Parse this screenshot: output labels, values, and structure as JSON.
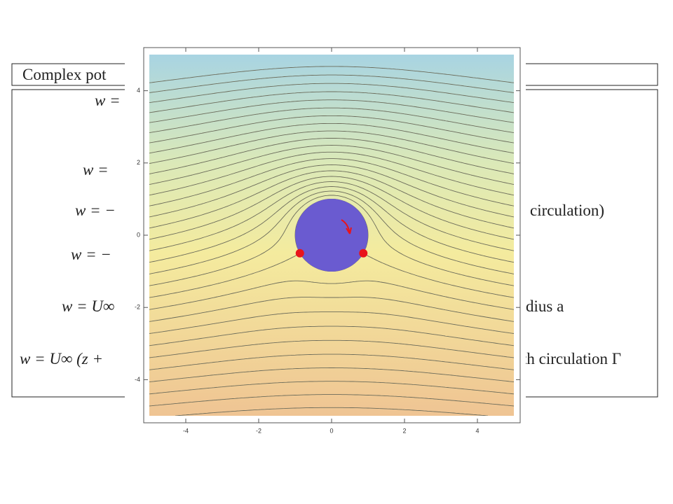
{
  "slide": {
    "title": "Complex pot",
    "lines": [
      "w =",
      "w =",
      "w = −",
      "w = −",
      "w = U∞",
      "w = U∞ (z +"
    ],
    "right": [
      "circulation)",
      "dius a",
      "th circulation Γ"
    ]
  },
  "chart_data": {
    "type": "contour",
    "xlim": [
      -5,
      5
    ],
    "ylim": [
      -5,
      5
    ],
    "xticks": [
      -4,
      -2,
      0,
      2,
      4
    ],
    "yticks": [
      -4,
      -2,
      0,
      2,
      4
    ],
    "levels": [
      -3,
      -2.7,
      -2.4,
      -2.1,
      -1.8,
      -1.5,
      -1.2,
      -0.9,
      -0.6,
      -0.3,
      0,
      0.3,
      0.6,
      0.9,
      1.2,
      1.5,
      1.8,
      2.1,
      2.4,
      2.7,
      3,
      3.3,
      3.6,
      3.9,
      4.2,
      4.5,
      4.8,
      5.1,
      5.4,
      5.7,
      6
    ],
    "cylinder": {
      "center": [
        0,
        0
      ],
      "radius": 1,
      "color": "#6a5bd0"
    },
    "circulation": 1,
    "stagnation_points": [
      [
        -0.87,
        -0.5
      ],
      [
        0.87,
        -0.5
      ]
    ],
    "point_color": "#e8141b"
  }
}
